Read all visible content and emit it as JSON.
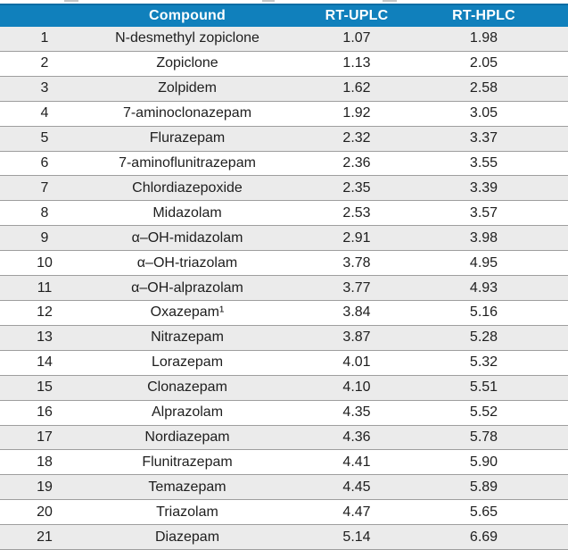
{
  "table": {
    "columns": [
      "",
      "Compound",
      "RT-UPLC",
      "RT-HPLC"
    ],
    "rows": [
      {
        "no": "1",
        "compound": "N-desmethyl zopiclone",
        "rt_uplc": "1.07",
        "rt_hplc": "1.98"
      },
      {
        "no": "2",
        "compound": "Zopiclone",
        "rt_uplc": "1.13",
        "rt_hplc": "2.05"
      },
      {
        "no": "3",
        "compound": "Zolpidem",
        "rt_uplc": "1.62",
        "rt_hplc": "2.58"
      },
      {
        "no": "4",
        "compound": "7-aminoclonazepam",
        "rt_uplc": "1.92",
        "rt_hplc": "3.05"
      },
      {
        "no": "5",
        "compound": "Flurazepam",
        "rt_uplc": "2.32",
        "rt_hplc": "3.37"
      },
      {
        "no": "6",
        "compound": "7-aminoflunitrazepam",
        "rt_uplc": "2.36",
        "rt_hplc": "3.55"
      },
      {
        "no": "7",
        "compound": "Chlordiazepoxide",
        "rt_uplc": "2.35",
        "rt_hplc": "3.39"
      },
      {
        "no": "8",
        "compound": "Midazolam",
        "rt_uplc": "2.53",
        "rt_hplc": "3.57"
      },
      {
        "no": "9",
        "compound": "α–OH-midazolam",
        "rt_uplc": "2.91",
        "rt_hplc": "3.98"
      },
      {
        "no": "10",
        "compound": "α–OH-triazolam",
        "rt_uplc": "3.78",
        "rt_hplc": "4.95"
      },
      {
        "no": "11",
        "compound": "α–OH-alprazolam",
        "rt_uplc": "3.77",
        "rt_hplc": "4.93"
      },
      {
        "no": "12",
        "compound": "Oxazepam¹",
        "rt_uplc": "3.84",
        "rt_hplc": "5.16"
      },
      {
        "no": "13",
        "compound": "Nitrazepam",
        "rt_uplc": "3.87",
        "rt_hplc": "5.28"
      },
      {
        "no": "14",
        "compound": "Lorazepam",
        "rt_uplc": "4.01",
        "rt_hplc": "5.32"
      },
      {
        "no": "15",
        "compound": "Clonazepam",
        "rt_uplc": "4.10",
        "rt_hplc": "5.51"
      },
      {
        "no": "16",
        "compound": "Alprazolam",
        "rt_uplc": "4.35",
        "rt_hplc": "5.52"
      },
      {
        "no": "17",
        "compound": "Nordiazepam",
        "rt_uplc": "4.36",
        "rt_hplc": "5.78"
      },
      {
        "no": "18",
        "compound": "Flunitrazepam",
        "rt_uplc": "4.41",
        "rt_hplc": "5.90"
      },
      {
        "no": "19",
        "compound": "Temazepam",
        "rt_uplc": "4.45",
        "rt_hplc": "5.89"
      },
      {
        "no": "20",
        "compound": "Triazolam",
        "rt_uplc": "4.47",
        "rt_hplc": "5.65"
      },
      {
        "no": "21",
        "compound": "Diazepam",
        "rt_uplc": "5.14",
        "rt_hplc": "6.69"
      }
    ]
  },
  "chart_data": {
    "type": "table",
    "title": "",
    "columns": [
      "",
      "Compound",
      "RT-UPLC",
      "RT-HPLC"
    ],
    "rows": [
      [
        1,
        "N-desmethyl zopiclone",
        1.07,
        1.98
      ],
      [
        2,
        "Zopiclone",
        1.13,
        2.05
      ],
      [
        3,
        "Zolpidem",
        1.62,
        2.58
      ],
      [
        4,
        "7-aminoclonazepam",
        1.92,
        3.05
      ],
      [
        5,
        "Flurazepam",
        2.32,
        3.37
      ],
      [
        6,
        "7-aminoflunitrazepam",
        2.36,
        3.55
      ],
      [
        7,
        "Chlordiazepoxide",
        2.35,
        3.39
      ],
      [
        8,
        "Midazolam",
        2.53,
        3.57
      ],
      [
        9,
        "α–OH-midazolam",
        2.91,
        3.98
      ],
      [
        10,
        "α–OH-triazolam",
        3.78,
        4.95
      ],
      [
        11,
        "α–OH-alprazolam",
        3.77,
        4.93
      ],
      [
        12,
        "Oxazepam¹",
        3.84,
        5.16
      ],
      [
        13,
        "Nitrazepam",
        3.87,
        5.28
      ],
      [
        14,
        "Lorazepam",
        4.01,
        5.32
      ],
      [
        15,
        "Clonazepam",
        4.1,
        5.51
      ],
      [
        16,
        "Alprazolam",
        4.35,
        5.52
      ],
      [
        17,
        "Nordiazepam",
        4.36,
        5.78
      ],
      [
        18,
        "Flunitrazepam",
        4.41,
        5.9
      ],
      [
        19,
        "Temazepam",
        4.45,
        5.89
      ],
      [
        20,
        "Triazolam",
        4.47,
        5.65
      ],
      [
        21,
        "Diazepam",
        5.14,
        6.69
      ]
    ]
  },
  "colors": {
    "header_background": "#1080bc",
    "header_top_edge": "#0b6da4",
    "header_text": "#ffffff",
    "stripe_row_background": "#ebebeb",
    "row_divider": "#9e9e9e",
    "body_text": "#1e1e1e"
  }
}
